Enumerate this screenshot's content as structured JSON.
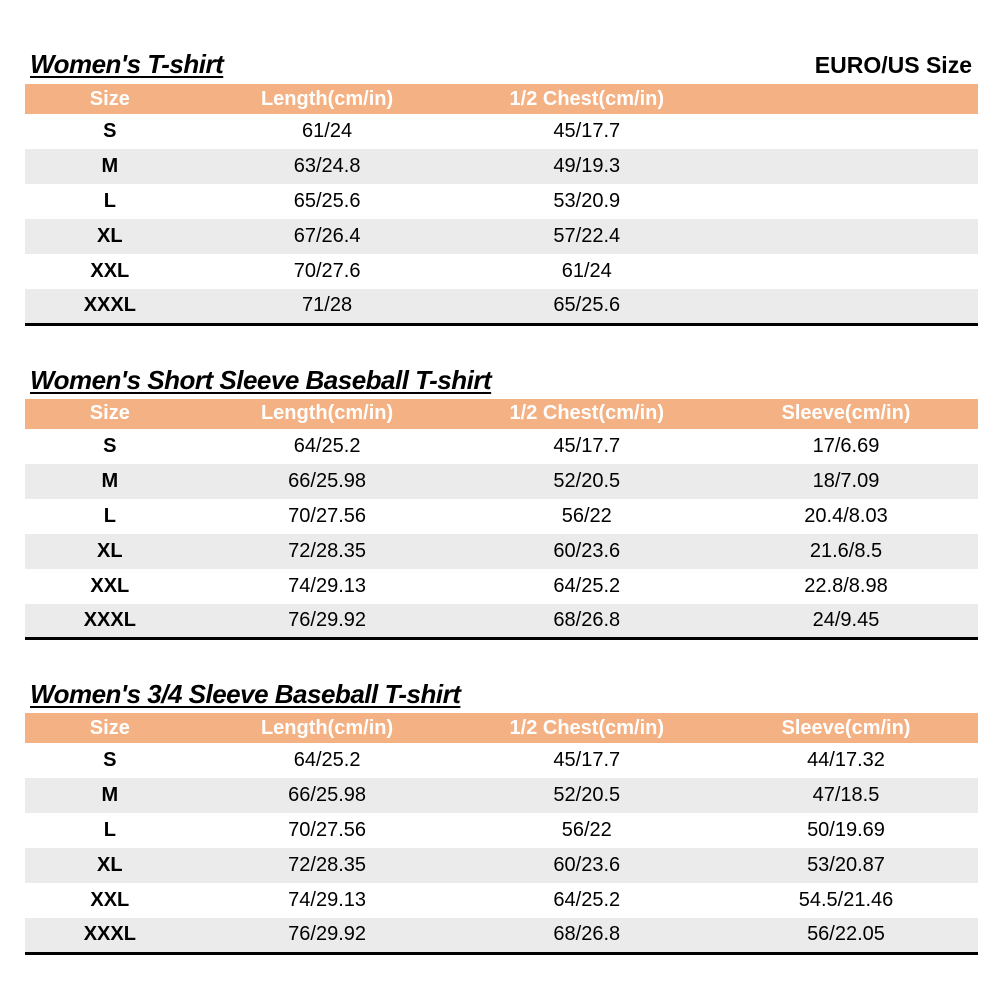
{
  "page": {
    "euro_us_label": "EURO/US Size"
  },
  "colors": {
    "header_bg": "#F4B183",
    "header_text": "#FFFFFF",
    "stripe_bg": "#EBEBEB",
    "bottom_rule": "#000000",
    "text": "#000000"
  },
  "tables": [
    {
      "title": "Women's T-shirt",
      "columns": [
        "Size",
        "Length(cm/in)",
        "1/2 Chest(cm/in)"
      ],
      "rows": [
        [
          "S",
          "61/24",
          "45/17.7"
        ],
        [
          "M",
          "63/24.8",
          "49/19.3"
        ],
        [
          "L",
          "65/25.6",
          "53/20.9"
        ],
        [
          "XL",
          "67/26.4",
          "57/22.4"
        ],
        [
          "XXL",
          "70/27.6",
          "61/24"
        ],
        [
          "XXXL",
          "71/28",
          "65/25.6"
        ]
      ]
    },
    {
      "title": "Women's Short Sleeve Baseball T-shirt",
      "columns": [
        "Size",
        "Length(cm/in)",
        "1/2 Chest(cm/in)",
        "Sleeve(cm/in)"
      ],
      "rows": [
        [
          "S",
          "64/25.2",
          "45/17.7",
          "17/6.69"
        ],
        [
          "M",
          "66/25.98",
          "52/20.5",
          "18/7.09"
        ],
        [
          "L",
          "70/27.56",
          "56/22",
          "20.4/8.03"
        ],
        [
          "XL",
          "72/28.35",
          "60/23.6",
          "21.6/8.5"
        ],
        [
          "XXL",
          "74/29.13",
          "64/25.2",
          "22.8/8.98"
        ],
        [
          "XXXL",
          "76/29.92",
          "68/26.8",
          "24/9.45"
        ]
      ]
    },
    {
      "title": "Women's 3/4 Sleeve Baseball T-shirt",
      "columns": [
        "Size",
        "Length(cm/in)",
        "1/2 Chest(cm/in)",
        "Sleeve(cm/in)"
      ],
      "rows": [
        [
          "S",
          "64/25.2",
          "45/17.7",
          "44/17.32"
        ],
        [
          "M",
          "66/25.98",
          "52/20.5",
          "47/18.5"
        ],
        [
          "L",
          "70/27.56",
          "56/22",
          "50/19.69"
        ],
        [
          "XL",
          "72/28.35",
          "60/23.6",
          "53/20.87"
        ],
        [
          "XXL",
          "74/29.13",
          "64/25.2",
          "54.5/21.46"
        ],
        [
          "XXXL",
          "76/29.92",
          "68/26.8",
          "56/22.05"
        ]
      ]
    }
  ]
}
